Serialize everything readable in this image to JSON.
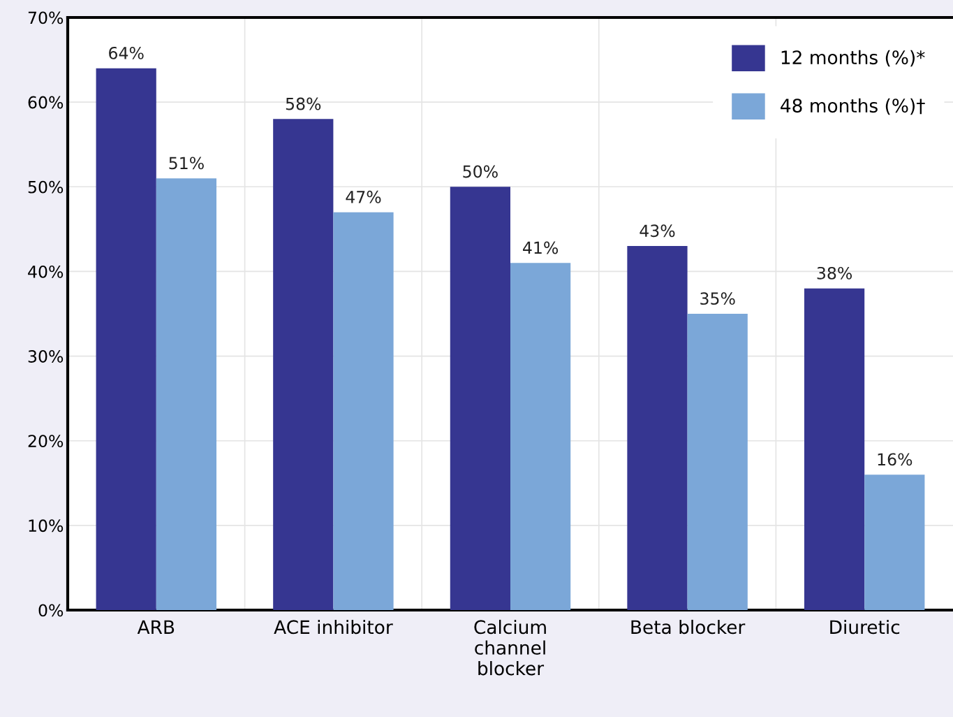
{
  "chart_data": {
    "type": "bar",
    "categories": [
      "ARB",
      "ACE inhibitor",
      "Calcium\nchannel\nblocker",
      "Beta blocker",
      "Diuretic"
    ],
    "series": [
      {
        "name": "12 months (%)*",
        "color": "#363691",
        "values": [
          64,
          58,
          50,
          43,
          38
        ],
        "value_labels": [
          "64%",
          "58%",
          "50%",
          "43%",
          "38%"
        ]
      },
      {
        "name": "48 months (%)†",
        "color": "#7ba7d8",
        "values": [
          51,
          47,
          41,
          35,
          16
        ],
        "value_labels": [
          "51%",
          "47%",
          "41%",
          "35%",
          "16%"
        ]
      }
    ],
    "ylim": [
      0,
      70
    ],
    "yticks": [
      {
        "value": 0,
        "label": "0%"
      },
      {
        "value": 10,
        "label": "10%"
      },
      {
        "value": 20,
        "label": "20%"
      },
      {
        "value": 30,
        "label": "30%"
      },
      {
        "value": 40,
        "label": "40%"
      },
      {
        "value": 50,
        "label": "50%"
      },
      {
        "value": 60,
        "label": "60%"
      },
      {
        "value": 70,
        "label": "70%"
      }
    ],
    "grid": true,
    "legend": "top right"
  }
}
